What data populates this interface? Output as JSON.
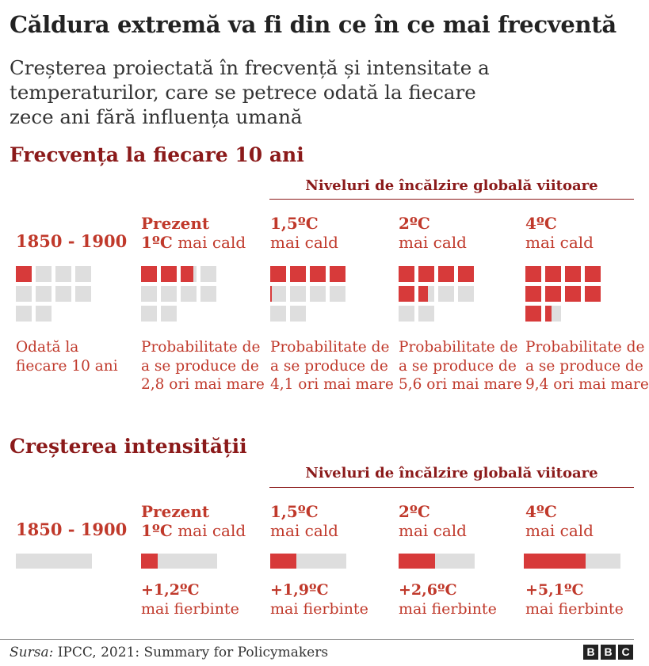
{
  "title": "Căldura extremă va fi din ce în ce mai frecventă",
  "subtitle": "Creșterea proiectată în frecvență și intensitate a temperaturilor, care se petrece odată la fiecare zece ani fără influența umană",
  "future_label": "Niveluri de încălzire globală viitoare",
  "source": {
    "label": "Sursa:",
    "text": "IPCC, 2021: Summary for Policymakers"
  },
  "logo": [
    "B",
    "B",
    "C"
  ],
  "colors": {
    "accent": "#d73a3a",
    "dark_red": "#8b1a1a",
    "empty": "#dedede"
  },
  "chart_data": [
    {
      "type": "waffle",
      "title": "Frecvența la fiecare 10 ani",
      "total_cells": 10,
      "columns": [
        {
          "label_bold": "",
          "label": "1850 - 1900",
          "value": 1.0,
          "desc": [
            "Odată la",
            "fiecare 10 ani"
          ]
        },
        {
          "label_bold": "Prezent",
          "label_bold2": "1ºC",
          "label": "mai cald",
          "value": 2.8,
          "desc": [
            "Probabilitate de",
            "a se produce de",
            "2,8 ori mai mare"
          ]
        },
        {
          "label_bold": "1,5ºC",
          "label": "mai cald",
          "value": 4.1,
          "desc": [
            "Probabilitate de",
            "a se produce de",
            "4,1 ori mai mare"
          ]
        },
        {
          "label_bold": "2ºC",
          "label": "mai cald",
          "value": 5.6,
          "desc": [
            "Probabilitate de",
            "a se produce de",
            "5,6 ori mai mare"
          ]
        },
        {
          "label_bold": "4ºC",
          "label": "mai cald",
          "value": 9.4,
          "desc": [
            "Probabilitate de",
            "a se produce de",
            "9,4 ori mai mare"
          ]
        }
      ]
    },
    {
      "type": "bar",
      "title": "Creșterea intensității",
      "xlim": [
        0,
        6
      ],
      "columns": [
        {
          "label_bold": "",
          "label": "1850 - 1900",
          "value": 0,
          "value_label": "",
          "desc": ""
        },
        {
          "label_bold": "Prezent",
          "label_bold2": "1ºC",
          "label": "mai cald",
          "value": 1.2,
          "value_label": "+1,2ºC",
          "desc": "mai fierbinte"
        },
        {
          "label_bold": "1,5ºC",
          "label": "mai cald",
          "value": 1.9,
          "value_label": "+1,9ºC",
          "desc": "mai fierbinte"
        },
        {
          "label_bold": "2ºC",
          "label": "mai cald",
          "value": 2.6,
          "value_label": "+2,6ºC",
          "desc": "mai fierbinte"
        },
        {
          "label_bold": "4ºC",
          "label": "mai cald",
          "value": 5.1,
          "value_label": "+5,1ºC",
          "desc": "mai fierbinte"
        }
      ]
    }
  ]
}
